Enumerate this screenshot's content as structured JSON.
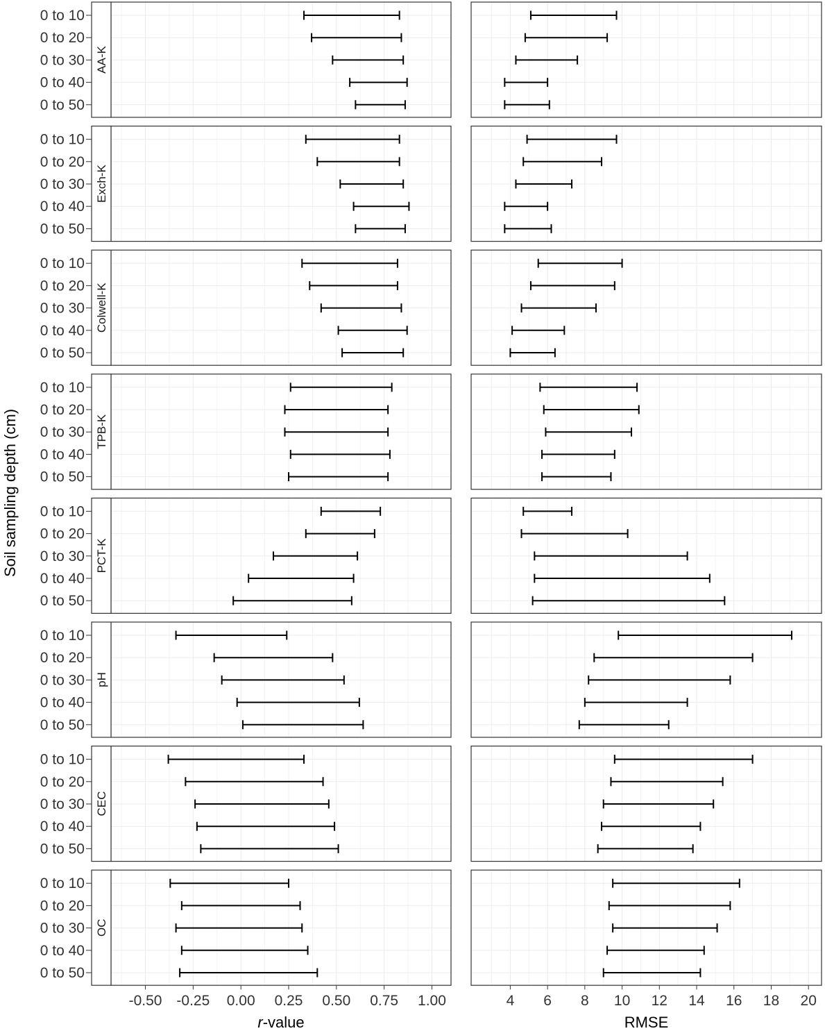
{
  "chart_data": {
    "type": "errorbar",
    "ylabel": "Soil sampling depth (cm)",
    "depths": [
      "0 to 10",
      "0 to 20",
      "0 to 30",
      "0 to 40",
      "0 to 50"
    ],
    "facets": [
      "AA-K",
      "Exch-K",
      "Colwell-K",
      "TPB-K",
      "PCT-K",
      "pH",
      "CEC",
      "OC"
    ],
    "columns": [
      {
        "xlabel_prefix": "r",
        "xlabel_suffix": "-value",
        "xlim": [
          -0.68,
          1.1
        ],
        "ticks": [
          -0.5,
          -0.25,
          0.0,
          0.25,
          0.5,
          0.75,
          1.0
        ],
        "tick_labels": [
          "-0.50",
          "-0.25",
          "0.00",
          "0.25",
          "0.50",
          "0.75",
          "1.00"
        ],
        "intervals": {
          "AA-K": [
            [
              0.33,
              0.83
            ],
            [
              0.37,
              0.84
            ],
            [
              0.48,
              0.85
            ],
            [
              0.57,
              0.87
            ],
            [
              0.6,
              0.86
            ]
          ],
          "Exch-K": [
            [
              0.34,
              0.83
            ],
            [
              0.4,
              0.83
            ],
            [
              0.52,
              0.85
            ],
            [
              0.59,
              0.88
            ],
            [
              0.6,
              0.86
            ]
          ],
          "Colwell-K": [
            [
              0.32,
              0.82
            ],
            [
              0.36,
              0.82
            ],
            [
              0.42,
              0.84
            ],
            [
              0.51,
              0.87
            ],
            [
              0.53,
              0.85
            ]
          ],
          "TPB-K": [
            [
              0.26,
              0.79
            ],
            [
              0.23,
              0.77
            ],
            [
              0.23,
              0.77
            ],
            [
              0.26,
              0.78
            ],
            [
              0.25,
              0.77
            ]
          ],
          "PCT-K": [
            [
              0.42,
              0.73
            ],
            [
              0.34,
              0.7
            ],
            [
              0.17,
              0.61
            ],
            [
              0.04,
              0.59
            ],
            [
              -0.04,
              0.58
            ]
          ],
          "pH": [
            [
              -0.34,
              0.24
            ],
            [
              -0.14,
              0.48
            ],
            [
              -0.1,
              0.54
            ],
            [
              -0.02,
              0.62
            ],
            [
              0.01,
              0.64
            ]
          ],
          "CEC": [
            [
              -0.38,
              0.33
            ],
            [
              -0.29,
              0.43
            ],
            [
              -0.24,
              0.46
            ],
            [
              -0.23,
              0.49
            ],
            [
              -0.21,
              0.51
            ]
          ],
          "OC": [
            [
              -0.37,
              0.25
            ],
            [
              -0.31,
              0.31
            ],
            [
              -0.34,
              0.32
            ],
            [
              -0.31,
              0.35
            ],
            [
              -0.32,
              0.4
            ]
          ]
        }
      },
      {
        "xlabel_prefix": "",
        "xlabel_suffix": "RMSE",
        "xlim": [
          1.9,
          20.7
        ],
        "ticks": [
          4,
          6,
          8,
          10,
          12,
          14,
          16,
          18,
          20
        ],
        "tick_labels": [
          "4",
          "6",
          "8",
          "10",
          "12",
          "14",
          "16",
          "18",
          "20"
        ],
        "intervals": {
          "AA-K": [
            [
              5.1,
              9.7
            ],
            [
              4.8,
              9.2
            ],
            [
              4.3,
              7.6
            ],
            [
              3.7,
              6.0
            ],
            [
              3.7,
              6.1
            ]
          ],
          "Exch-K": [
            [
              4.9,
              9.7
            ],
            [
              4.7,
              8.9
            ],
            [
              4.3,
              7.3
            ],
            [
              3.7,
              6.0
            ],
            [
              3.7,
              6.2
            ]
          ],
          "Colwell-K": [
            [
              5.5,
              10.0
            ],
            [
              5.1,
              9.6
            ],
            [
              4.6,
              8.6
            ],
            [
              4.1,
              6.9
            ],
            [
              4.0,
              6.4
            ]
          ],
          "TPB-K": [
            [
              5.6,
              10.8
            ],
            [
              5.8,
              10.9
            ],
            [
              5.9,
              10.5
            ],
            [
              5.7,
              9.6
            ],
            [
              5.7,
              9.4
            ]
          ],
          "PCT-K": [
            [
              4.7,
              7.3
            ],
            [
              4.6,
              10.3
            ],
            [
              5.3,
              13.5
            ],
            [
              5.3,
              14.7
            ],
            [
              5.2,
              15.5
            ]
          ],
          "pH": [
            [
              9.8,
              19.1
            ],
            [
              8.5,
              17.0
            ],
            [
              8.2,
              15.8
            ],
            [
              8.0,
              13.5
            ],
            [
              7.7,
              12.5
            ]
          ],
          "CEC": [
            [
              9.6,
              17.0
            ],
            [
              9.4,
              15.4
            ],
            [
              9.0,
              14.9
            ],
            [
              8.9,
              14.2
            ],
            [
              8.7,
              13.8
            ]
          ],
          "OC": [
            [
              9.5,
              16.3
            ],
            [
              9.3,
              15.8
            ],
            [
              9.5,
              15.1
            ],
            [
              9.2,
              14.4
            ],
            [
              9.0,
              14.2
            ]
          ]
        }
      }
    ]
  }
}
